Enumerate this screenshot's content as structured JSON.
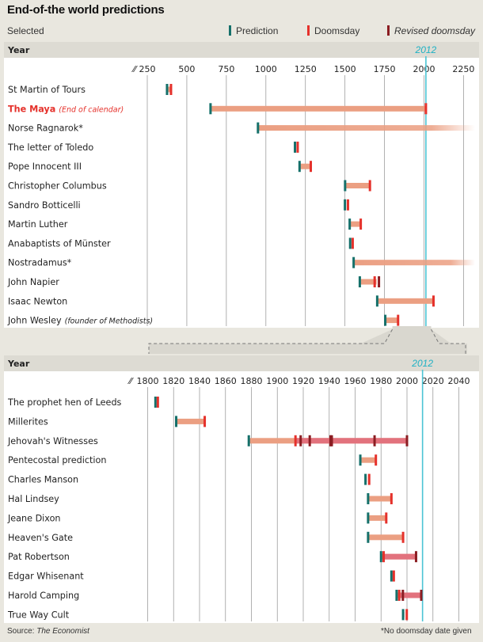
{
  "title": "End-of-the world predictions",
  "subtitle": "Selected",
  "legend": [
    {
      "label": "Prediction",
      "color": "#15706a"
    },
    {
      "label": "Doomsday",
      "color": "#e5312b"
    },
    {
      "label": "Revised doomsday",
      "color": "#8b1d22"
    }
  ],
  "source_prefix": "Source: ",
  "source_name": "The Economist",
  "footnote": "*No doomsday date given",
  "colors": {
    "prediction": "#15706a",
    "doomsday": "#e5312b",
    "revised": "#8b1d22",
    "bar": "#eb9f82",
    "bar_pink": "#e06a7d",
    "reference_line": "#4cc4d4",
    "panel_bg": "#ffffff",
    "page_bg": "#e9e7df",
    "grid": "#9e9e9e"
  },
  "chart_data": [
    {
      "type": "range",
      "axis_label": "Year",
      "reference_year": "2012",
      "reference_value": 2012,
      "axis_break_mark": "⁄⁄",
      "xlim": [
        150,
        2350
      ],
      "ticks": [
        250,
        500,
        750,
        1000,
        1250,
        1500,
        1750,
        2000,
        2250
      ],
      "tick_labels": [
        "250",
        "500",
        "750",
        "1000",
        "1250",
        "1500",
        "1750",
        "2000",
        "2250"
      ],
      "rows": [
        {
          "label": "St Martin of Tours",
          "prediction": 375,
          "doomsday": 400
        },
        {
          "label": "The Maya",
          "label_note": "(End of calendar)",
          "highlight": true,
          "prediction": 650,
          "doomsday": 2012
        },
        {
          "label": "Norse Ragnarok*",
          "prediction": 950,
          "open_ended": true
        },
        {
          "label": "The letter of Toledo",
          "prediction": 1184,
          "doomsday": 1186
        },
        {
          "label": "Pope Innocent III",
          "prediction": 1213,
          "doomsday": 1284
        },
        {
          "label": "Christopher Columbus",
          "prediction": 1501,
          "doomsday": 1658
        },
        {
          "label": "Sandro Botticelli",
          "prediction": 1500,
          "doomsday": 1504
        },
        {
          "label": "Martin Luther",
          "prediction": 1530,
          "doomsday": 1600
        },
        {
          "label": "Anabaptists of Münster",
          "prediction": 1533,
          "doomsday": 1534
        },
        {
          "label": "Nostradamus*",
          "prediction": 1555,
          "open_ended": true
        },
        {
          "label": "John Napier",
          "prediction": 1594,
          "doomsday": 1688,
          "revised": [
            1700
          ]
        },
        {
          "label": "Isaac Newton",
          "prediction": 1704,
          "doomsday": 2060
        },
        {
          "label": "John Wesley",
          "label_note": "(founder of Methodists)",
          "prediction": 1755,
          "doomsday": 1836
        }
      ]
    },
    {
      "type": "range",
      "axis_label": "Year",
      "reference_year": "2012",
      "reference_value": 2012,
      "axis_break_mark": "⁄⁄",
      "xlim": [
        1791,
        2045
      ],
      "ticks": [
        1800,
        1820,
        1840,
        1860,
        1880,
        1900,
        1920,
        1940,
        1960,
        1980,
        2000,
        2020,
        2040
      ],
      "tick_labels": [
        "1800",
        "1820",
        "1840",
        "1860",
        "1880",
        "1900",
        "1920",
        "1940",
        "1960",
        "1980",
        "2000",
        "2020",
        "2040"
      ],
      "rows": [
        {
          "label": "The prophet hen of Leeds",
          "prediction": 1806,
          "doomsday": 1806
        },
        {
          "label": "Millerites",
          "prediction": 1822,
          "doomsday": 1844
        },
        {
          "label": "Jehovah's Witnesses",
          "prediction": 1878,
          "doomsday": 1914,
          "revised": [
            1918,
            1925,
            1941,
            1942,
            1975,
            2000
          ]
        },
        {
          "label": "Pentecostal prediction",
          "prediction": 1964,
          "doomsday": 1976
        },
        {
          "label": "Charles Manson",
          "prediction": 1968,
          "doomsday": 1969
        },
        {
          "label": "Hal Lindsey",
          "prediction": 1970,
          "doomsday": 1988
        },
        {
          "label": "Jeane Dixon",
          "prediction": 1970,
          "doomsday": 1984
        },
        {
          "label": "Heaven's Gate",
          "prediction": 1970,
          "doomsday": 1997
        },
        {
          "label": "Pat Robertson",
          "prediction": 1980,
          "doomsday": 1982,
          "revised": [
            2007
          ]
        },
        {
          "label": "Edgar Whisenant",
          "prediction": 1988,
          "doomsday": 1988
        },
        {
          "label": "Harold Camping",
          "prediction": 1992,
          "doomsday": 1994,
          "revised": [
            1995,
            2011
          ]
        },
        {
          "label": "True Way Cult",
          "prediction": 1997,
          "doomsday": 1998
        }
      ]
    }
  ]
}
